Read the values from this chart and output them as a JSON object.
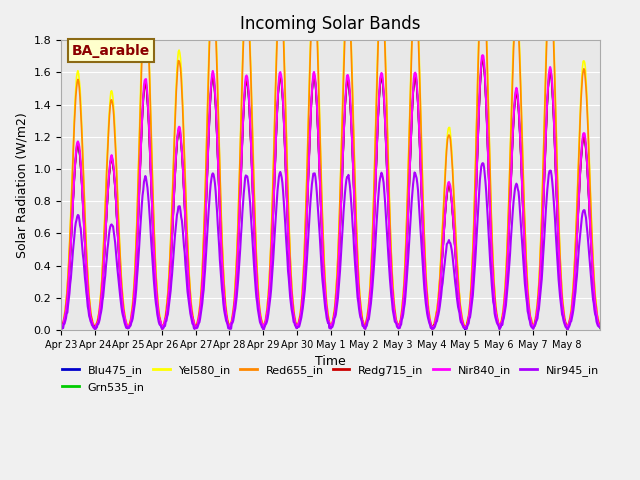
{
  "title": "Incoming Solar Bands",
  "xlabel": "Time",
  "ylabel": "Solar Radiation (W/m2)",
  "annotation": "BA_arable",
  "ylim": [
    0,
    1.8
  ],
  "fig_facecolor": "#f0f0f0",
  "ax_facecolor": "#e8e8e8",
  "series": {
    "Blu475_in": {
      "color": "#0000cc",
      "lw": 1.2,
      "scale": 1.0
    },
    "Grn535_in": {
      "color": "#00cc00",
      "lw": 1.2,
      "scale": 1.01
    },
    "Yel580_in": {
      "color": "#ffff00",
      "lw": 1.2,
      "scale": 1.4
    },
    "Red655_in": {
      "color": "#ff8800",
      "lw": 1.2,
      "scale": 1.35
    },
    "Redg715_in": {
      "color": "#cc0000",
      "lw": 1.2,
      "scale": 1.0
    },
    "Nir840_in": {
      "color": "#ff00ff",
      "lw": 1.5,
      "scale": 1.02
    },
    "Nir945_in": {
      "color": "#aa00ff",
      "lw": 1.5,
      "scale": 0.62
    }
  },
  "xtick_labels": [
    "Apr 23",
    "Apr 24",
    "Apr 25",
    "Apr 26",
    "Apr 27",
    "Apr 28",
    "Apr 29",
    "Apr 30",
    "May 1",
    "May 2",
    "May 3",
    "May 4",
    "May 5",
    "May 6",
    "May 7",
    "May 8"
  ],
  "peak_heights": [
    1.15,
    1.06,
    1.53,
    1.24,
    1.57,
    1.55,
    1.57,
    1.57,
    1.55,
    1.57,
    1.57,
    0.9,
    1.68,
    1.47,
    1.6,
    1.2
  ],
  "ytick_labels": [
    "0.0",
    "0.2",
    "0.4",
    "0.6",
    "0.8",
    "1.0",
    "1.2",
    "1.4",
    "1.6",
    "1.8"
  ],
  "ytick_vals": [
    0.0,
    0.2,
    0.4,
    0.6,
    0.8,
    1.0,
    1.2,
    1.4,
    1.6,
    1.8
  ]
}
